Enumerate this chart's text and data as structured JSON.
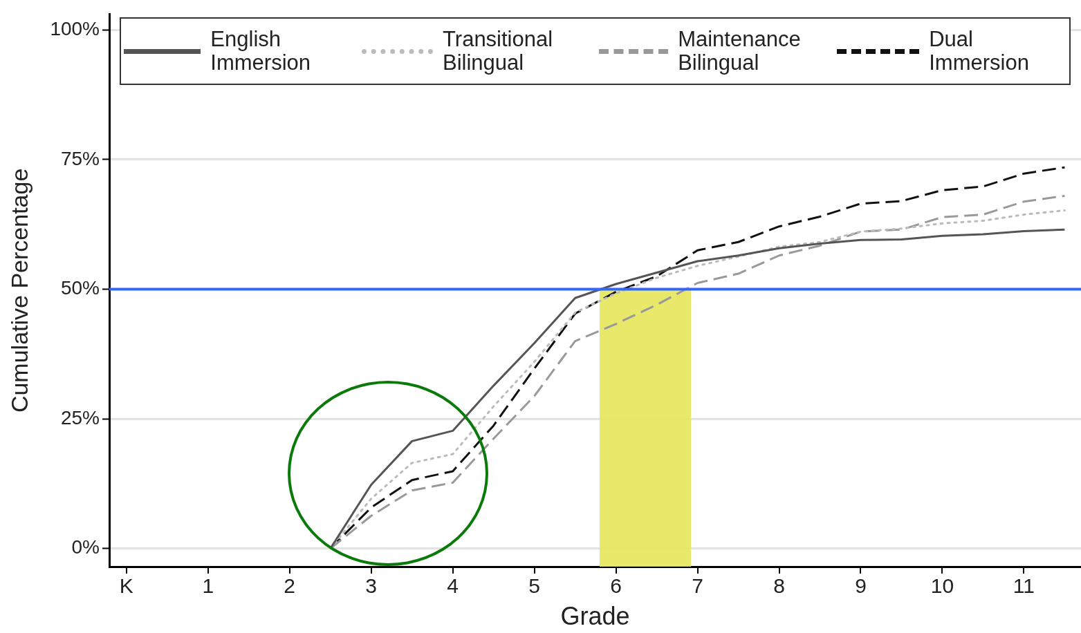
{
  "chart_data": {
    "type": "line",
    "xlabel": "Grade",
    "ylabel": "Cumulative Percentage",
    "x": [
      2.5,
      3,
      3.5,
      4,
      4.5,
      5,
      5.5,
      6,
      6.5,
      7,
      7.5,
      8,
      8.5,
      9,
      9.5,
      10,
      10.5,
      11,
      11.5
    ],
    "series": [
      {
        "name": "English Immersion",
        "color": "#555555",
        "line_style": "solid",
        "values": [
          0,
          12.3,
          20.7,
          22.7,
          31.4,
          39.6,
          48.3,
          51,
          53.2,
          55.4,
          56.5,
          57.9,
          58.8,
          59.5,
          59.6,
          60.3,
          60.6,
          61.2,
          61.5
        ]
      },
      {
        "name": "Transitional Bilingual",
        "color": "#bbbbbb",
        "line_style": "dotted",
        "values": [
          0,
          9.6,
          16.5,
          18.2,
          27.4,
          36,
          45.5,
          49.2,
          52.2,
          54.5,
          56.3,
          58.2,
          59.1,
          61.1,
          61.7,
          62.7,
          63.2,
          64.4,
          65.2
        ]
      },
      {
        "name": "Maintenance Bilingual",
        "color": "#999999",
        "line_style": "dashed",
        "values": [
          0,
          6.3,
          11.2,
          12.7,
          21.2,
          29.4,
          40,
          43.3,
          47,
          51.2,
          53,
          56.5,
          58.4,
          61.1,
          61.5,
          63.9,
          64.4,
          66.9,
          68
        ]
      },
      {
        "name": "Dual Immersion",
        "color": "#111111",
        "line_style": "dashed",
        "values": [
          0,
          7.9,
          13.2,
          14.9,
          23.7,
          34.7,
          45.3,
          49.5,
          52.5,
          57.5,
          59.1,
          62.1,
          64,
          66.5,
          67,
          69.1,
          69.8,
          72.3,
          73.5
        ]
      }
    ],
    "xlim": [
      -0.21,
      11.7
    ],
    "xticks": [
      {
        "value": 0,
        "label": "K"
      },
      1,
      2,
      3,
      4,
      5,
      6,
      7,
      8,
      9,
      10,
      11
    ],
    "ylim": [
      -3.5,
      103
    ],
    "yticks": [
      {
        "value": 0,
        "label": "0%"
      },
      {
        "value": 25,
        "label": "25%"
      },
      {
        "value": 50,
        "label": "50%"
      },
      {
        "value": 75,
        "label": "75%"
      },
      {
        "value": 100,
        "label": "100%"
      }
    ],
    "ref_lines": [
      {
        "axis": "y",
        "value": 50,
        "color": "#3366ff"
      }
    ],
    "bands": [
      {
        "axis": "x",
        "from": 5.8,
        "to": 6.92,
        "color": "#e6e65a"
      }
    ],
    "grid": "y",
    "legend": "top"
  }
}
